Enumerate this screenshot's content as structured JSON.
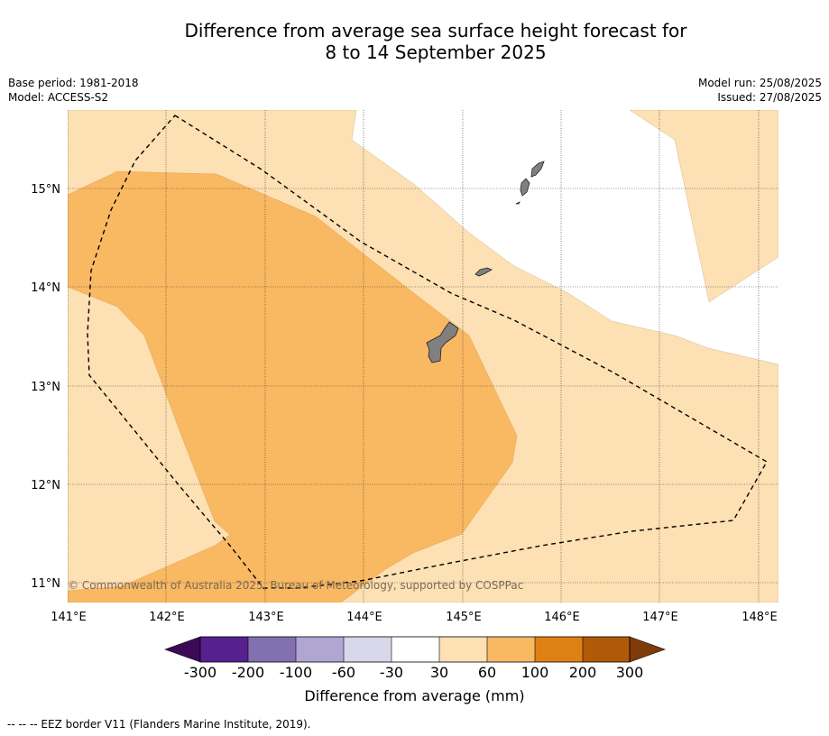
{
  "title": {
    "line1": "Difference from average sea surface height forecast for",
    "line2": "8 to 14 September 2025"
  },
  "meta_left": {
    "base_period": "Base period: 1981-2018",
    "model": "Model: ACCESS-S2"
  },
  "meta_right": {
    "model_run": "Model run: 25/08/2025",
    "issued": "Issued: 27/08/2025"
  },
  "map": {
    "lon_ticks": [
      "141°E",
      "142°E",
      "143°E",
      "144°E",
      "145°E",
      "146°E",
      "147°E",
      "148°E"
    ],
    "lat_ticks": [
      "15°N",
      "14°N",
      "13°N",
      "12°N",
      "11°N"
    ],
    "copyright": "© Commonwealth of Australia 2025, Bureau of Meteorology, supported by COSPPac",
    "colors": {
      "band_30_60": "#fde0b3",
      "band_60_100": "#f9b862",
      "land": "#808080",
      "eez": "#000000"
    }
  },
  "colorbar": {
    "ticks": [
      "-300",
      "-200",
      "-100",
      "-60",
      "-30",
      "30",
      "60",
      "100",
      "200",
      "300"
    ],
    "colors": [
      "#3b0a57",
      "#57208f",
      "#8270b0",
      "#b0a6d2",
      "#d8d8ea",
      "#ffffff",
      "#fde0b3",
      "#f9b862",
      "#df8015",
      "#b05a08",
      "#7f3b08"
    ],
    "label": "Difference from average (mm)"
  },
  "footer": "--  --  -- EEZ border V11 (Flanders Marine Institute, 2019)."
}
